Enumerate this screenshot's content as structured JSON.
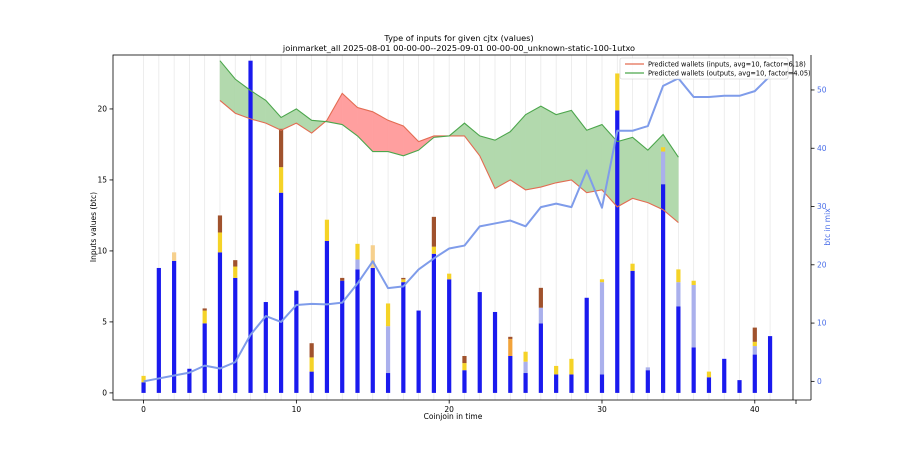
{
  "chart_data": {
    "type": "bar",
    "title": "Type of inputs for given cjtx (values)",
    "subtitle": "joinmarket_all 2025-08-01 00-00-00--2025-09-01 00-00-00_unknown-static-100-1utxo",
    "xlabel": "Coinjoin in time",
    "ylabel": "Inputs values (btc)",
    "y2label": "btc in mix",
    "xlim": [
      -2,
      42.5
    ],
    "ylim": [
      -0.5,
      23.8
    ],
    "y2lim": [
      -3.2,
      56
    ],
    "x_ticks": [
      0,
      10,
      20,
      30,
      40
    ],
    "y_ticks": [
      0,
      5,
      10,
      15,
      20
    ],
    "y2_ticks": [
      0,
      10,
      20,
      30,
      40,
      50
    ],
    "grid": "vertical",
    "legend_position": "top-right",
    "legend": [
      "Predicted wallets (inputs, avg=10, factor=6.18)",
      "Predicted wallets (outputs, avg=10, factor=4.05)"
    ],
    "colors": {
      "blue": "#1a1aee",
      "lightblue": "#aab0ec",
      "yellow": "#f5d327",
      "orange": "#f2a33a",
      "lightorange": "#f6d08d",
      "brown": "#a0522d",
      "mix_line": "#7f9cea",
      "inputs_line": "#e36c52",
      "outputs_line": "#4ca64c",
      "fill_red": "#ff9f9f",
      "fill_green": "#b2d9ad"
    },
    "stacks": [
      {
        "x": 0,
        "segments": [
          {
            "c": "blue",
            "v": 0.75
          },
          {
            "c": "yellow",
            "v": 0.45
          }
        ]
      },
      {
        "x": 1,
        "segments": [
          {
            "c": "blue",
            "v": 8.8
          }
        ]
      },
      {
        "x": 2,
        "segments": [
          {
            "c": "blue",
            "v": 9.3
          },
          {
            "c": "lightorange",
            "v": 0.6
          }
        ]
      },
      {
        "x": 3,
        "segments": [
          {
            "c": "blue",
            "v": 1.7
          }
        ]
      },
      {
        "x": 4,
        "segments": [
          {
            "c": "blue",
            "v": 4.9
          },
          {
            "c": "yellow",
            "v": 0.9
          },
          {
            "c": "brown",
            "v": 0.15
          }
        ]
      },
      {
        "x": 5,
        "segments": [
          {
            "c": "blue",
            "v": 9.9
          },
          {
            "c": "yellow",
            "v": 1.4
          },
          {
            "c": "brown",
            "v": 1.2
          }
        ]
      },
      {
        "x": 6,
        "segments": [
          {
            "c": "blue",
            "v": 8.1
          },
          {
            "c": "yellow",
            "v": 0.8
          },
          {
            "c": "brown",
            "v": 0.45
          }
        ]
      },
      {
        "x": 7,
        "segments": [
          {
            "c": "blue",
            "v": 23.4
          }
        ]
      },
      {
        "x": 8,
        "segments": [
          {
            "c": "blue",
            "v": 6.4
          }
        ]
      },
      {
        "x": 9,
        "segments": [
          {
            "c": "blue",
            "v": 14.1
          },
          {
            "c": "yellow",
            "v": 1.8
          },
          {
            "c": "brown",
            "v": 2.7
          }
        ]
      },
      {
        "x": 10,
        "segments": [
          {
            "c": "blue",
            "v": 7.2
          }
        ]
      },
      {
        "x": 11,
        "segments": [
          {
            "c": "blue",
            "v": 1.5
          },
          {
            "c": "yellow",
            "v": 1.0
          },
          {
            "c": "brown",
            "v": 1.0
          }
        ]
      },
      {
        "x": 12,
        "segments": [
          {
            "c": "blue",
            "v": 10.7
          },
          {
            "c": "yellow",
            "v": 1.5
          }
        ]
      },
      {
        "x": 13,
        "segments": [
          {
            "c": "blue",
            "v": 7.9
          },
          {
            "c": "brown",
            "v": 0.2
          }
        ]
      },
      {
        "x": 14,
        "segments": [
          {
            "c": "blue",
            "v": 8.7
          },
          {
            "c": "lightblue",
            "v": 0.7
          },
          {
            "c": "yellow",
            "v": 1.1
          }
        ]
      },
      {
        "x": 15,
        "segments": [
          {
            "c": "blue",
            "v": 8.8
          },
          {
            "c": "lightorange",
            "v": 1.6
          }
        ]
      },
      {
        "x": 16,
        "segments": [
          {
            "c": "blue",
            "v": 1.4
          },
          {
            "c": "lightblue",
            "v": 3.3
          },
          {
            "c": "yellow",
            "v": 1.6
          }
        ]
      },
      {
        "x": 17,
        "segments": [
          {
            "c": "blue",
            "v": 7.8
          },
          {
            "c": "yellow",
            "v": 0.2
          },
          {
            "c": "brown",
            "v": 0.1
          }
        ]
      },
      {
        "x": 18,
        "segments": [
          {
            "c": "blue",
            "v": 5.8
          }
        ]
      },
      {
        "x": 19,
        "segments": [
          {
            "c": "blue",
            "v": 9.8
          },
          {
            "c": "yellow",
            "v": 0.5
          },
          {
            "c": "brown",
            "v": 2.1
          }
        ]
      },
      {
        "x": 20,
        "segments": [
          {
            "c": "blue",
            "v": 8.0
          },
          {
            "c": "yellow",
            "v": 0.4
          }
        ]
      },
      {
        "x": 21,
        "segments": [
          {
            "c": "blue",
            "v": 1.6
          },
          {
            "c": "yellow",
            "v": 0.5
          },
          {
            "c": "brown",
            "v": 0.5
          }
        ]
      },
      {
        "x": 22,
        "segments": [
          {
            "c": "blue",
            "v": 7.1
          }
        ]
      },
      {
        "x": 23,
        "segments": [
          {
            "c": "blue",
            "v": 5.7
          }
        ]
      },
      {
        "x": 24,
        "segments": [
          {
            "c": "blue",
            "v": 2.6
          },
          {
            "c": "orange",
            "v": 1.2
          },
          {
            "c": "brown",
            "v": 0.15
          }
        ]
      },
      {
        "x": 25,
        "segments": [
          {
            "c": "blue",
            "v": 1.4
          },
          {
            "c": "lightblue",
            "v": 0.8
          },
          {
            "c": "yellow",
            "v": 0.7
          }
        ]
      },
      {
        "x": 26,
        "segments": [
          {
            "c": "blue",
            "v": 4.9
          },
          {
            "c": "lightblue",
            "v": 1.1
          },
          {
            "c": "brown",
            "v": 1.4
          }
        ]
      },
      {
        "x": 27,
        "segments": [
          {
            "c": "blue",
            "v": 1.3
          },
          {
            "c": "yellow",
            "v": 0.6
          }
        ]
      },
      {
        "x": 28,
        "segments": [
          {
            "c": "blue",
            "v": 1.3
          },
          {
            "c": "yellow",
            "v": 1.1
          }
        ]
      },
      {
        "x": 29,
        "segments": [
          {
            "c": "blue",
            "v": 6.7
          }
        ]
      },
      {
        "x": 30,
        "segments": [
          {
            "c": "blue",
            "v": 1.3
          },
          {
            "c": "lightblue",
            "v": 6.5
          },
          {
            "c": "yellow",
            "v": 0.2
          }
        ]
      },
      {
        "x": 31,
        "segments": [
          {
            "c": "blue",
            "v": 19.9
          },
          {
            "c": "yellow",
            "v": 2.6
          }
        ]
      },
      {
        "x": 32,
        "segments": [
          {
            "c": "blue",
            "v": 8.6
          },
          {
            "c": "yellow",
            "v": 0.5
          }
        ]
      },
      {
        "x": 33,
        "segments": [
          {
            "c": "blue",
            "v": 1.6
          },
          {
            "c": "lightblue",
            "v": 0.2
          }
        ]
      },
      {
        "x": 34,
        "segments": [
          {
            "c": "blue",
            "v": 14.7
          },
          {
            "c": "lightblue",
            "v": 2.3
          },
          {
            "c": "yellow",
            "v": 0.3
          }
        ]
      },
      {
        "x": 35,
        "segments": [
          {
            "c": "blue",
            "v": 6.1
          },
          {
            "c": "lightblue",
            "v": 1.7
          },
          {
            "c": "yellow",
            "v": 0.9
          }
        ]
      },
      {
        "x": 36,
        "segments": [
          {
            "c": "blue",
            "v": 3.2
          },
          {
            "c": "lightblue",
            "v": 4.4
          },
          {
            "c": "yellow",
            "v": 0.3
          }
        ]
      },
      {
        "x": 37,
        "segments": [
          {
            "c": "blue",
            "v": 1.1
          },
          {
            "c": "yellow",
            "v": 0.4
          }
        ]
      },
      {
        "x": 38,
        "segments": [
          {
            "c": "blue",
            "v": 2.4
          }
        ]
      },
      {
        "x": 39,
        "segments": [
          {
            "c": "blue",
            "v": 0.9
          }
        ]
      },
      {
        "x": 40,
        "segments": [
          {
            "c": "blue",
            "v": 2.7
          },
          {
            "c": "lightblue",
            "v": 0.6
          },
          {
            "c": "yellow",
            "v": 0.3
          },
          {
            "c": "brown",
            "v": 1.0
          }
        ]
      },
      {
        "x": 41,
        "segments": [
          {
            "c": "blue",
            "v": 4.0
          }
        ]
      }
    ],
    "predicted_inputs": {
      "x": [
        5,
        6,
        7,
        8,
        9,
        10,
        11,
        12,
        13,
        14,
        15,
        16,
        17,
        18,
        19,
        20,
        21,
        22,
        23,
        24,
        25,
        26,
        27,
        28,
        29,
        30,
        31,
        32,
        33,
        34,
        35
      ],
      "y": [
        20.6,
        19.7,
        19.3,
        19.0,
        18.5,
        19.0,
        18.3,
        19.2,
        21.1,
        20.1,
        19.8,
        19.2,
        18.8,
        17.7,
        18.1,
        18.1,
        18.1,
        16.7,
        14.4,
        15.0,
        14.3,
        14.5,
        14.8,
        15.0,
        14.1,
        14.3,
        13.1,
        13.7,
        13.4,
        12.9,
        12.0
      ]
    },
    "predicted_outputs": {
      "x": [
        5,
        6,
        7,
        8,
        9,
        10,
        11,
        12,
        13,
        14,
        15,
        16,
        17,
        18,
        19,
        20,
        21,
        22,
        23,
        24,
        25,
        26,
        27,
        28,
        29,
        30,
        31,
        32,
        33,
        34,
        35
      ],
      "y": [
        23.4,
        22.1,
        21.3,
        20.6,
        19.4,
        20.0,
        19.2,
        19.1,
        18.9,
        18.1,
        17.0,
        17.0,
        16.7,
        17.1,
        18.0,
        18.1,
        19.0,
        18.1,
        17.8,
        18.4,
        19.6,
        20.2,
        19.6,
        19.9,
        18.5,
        18.9,
        17.7,
        18.0,
        17.1,
        18.2,
        16.6
      ]
    },
    "btc_in_mix": {
      "x": [
        0,
        1,
        2,
        3,
        4,
        5,
        6,
        7,
        8,
        9,
        10,
        11,
        12,
        13,
        14,
        15,
        16,
        17,
        18,
        19,
        20,
        21,
        22,
        23,
        24,
        25,
        26,
        27,
        28,
        29,
        30,
        31,
        32,
        33,
        34,
        35,
        36,
        37,
        38,
        39,
        40,
        41
      ],
      "y": [
        0,
        0.5,
        1.0,
        1.5,
        2.7,
        2.2,
        3.3,
        8.0,
        11.2,
        10.2,
        13.1,
        13.3,
        13.2,
        13.5,
        16.8,
        20.6,
        16.0,
        16.3,
        19.2,
        21.1,
        22.8,
        23.3,
        26.6,
        27.1,
        27.6,
        26.6,
        29.9,
        30.5,
        29.9,
        36.2,
        29.8,
        43.0,
        43.0,
        43.8,
        50.7,
        52.0,
        48.8,
        48.8,
        49.0,
        49.0,
        49.8,
        52.4
      ]
    }
  }
}
